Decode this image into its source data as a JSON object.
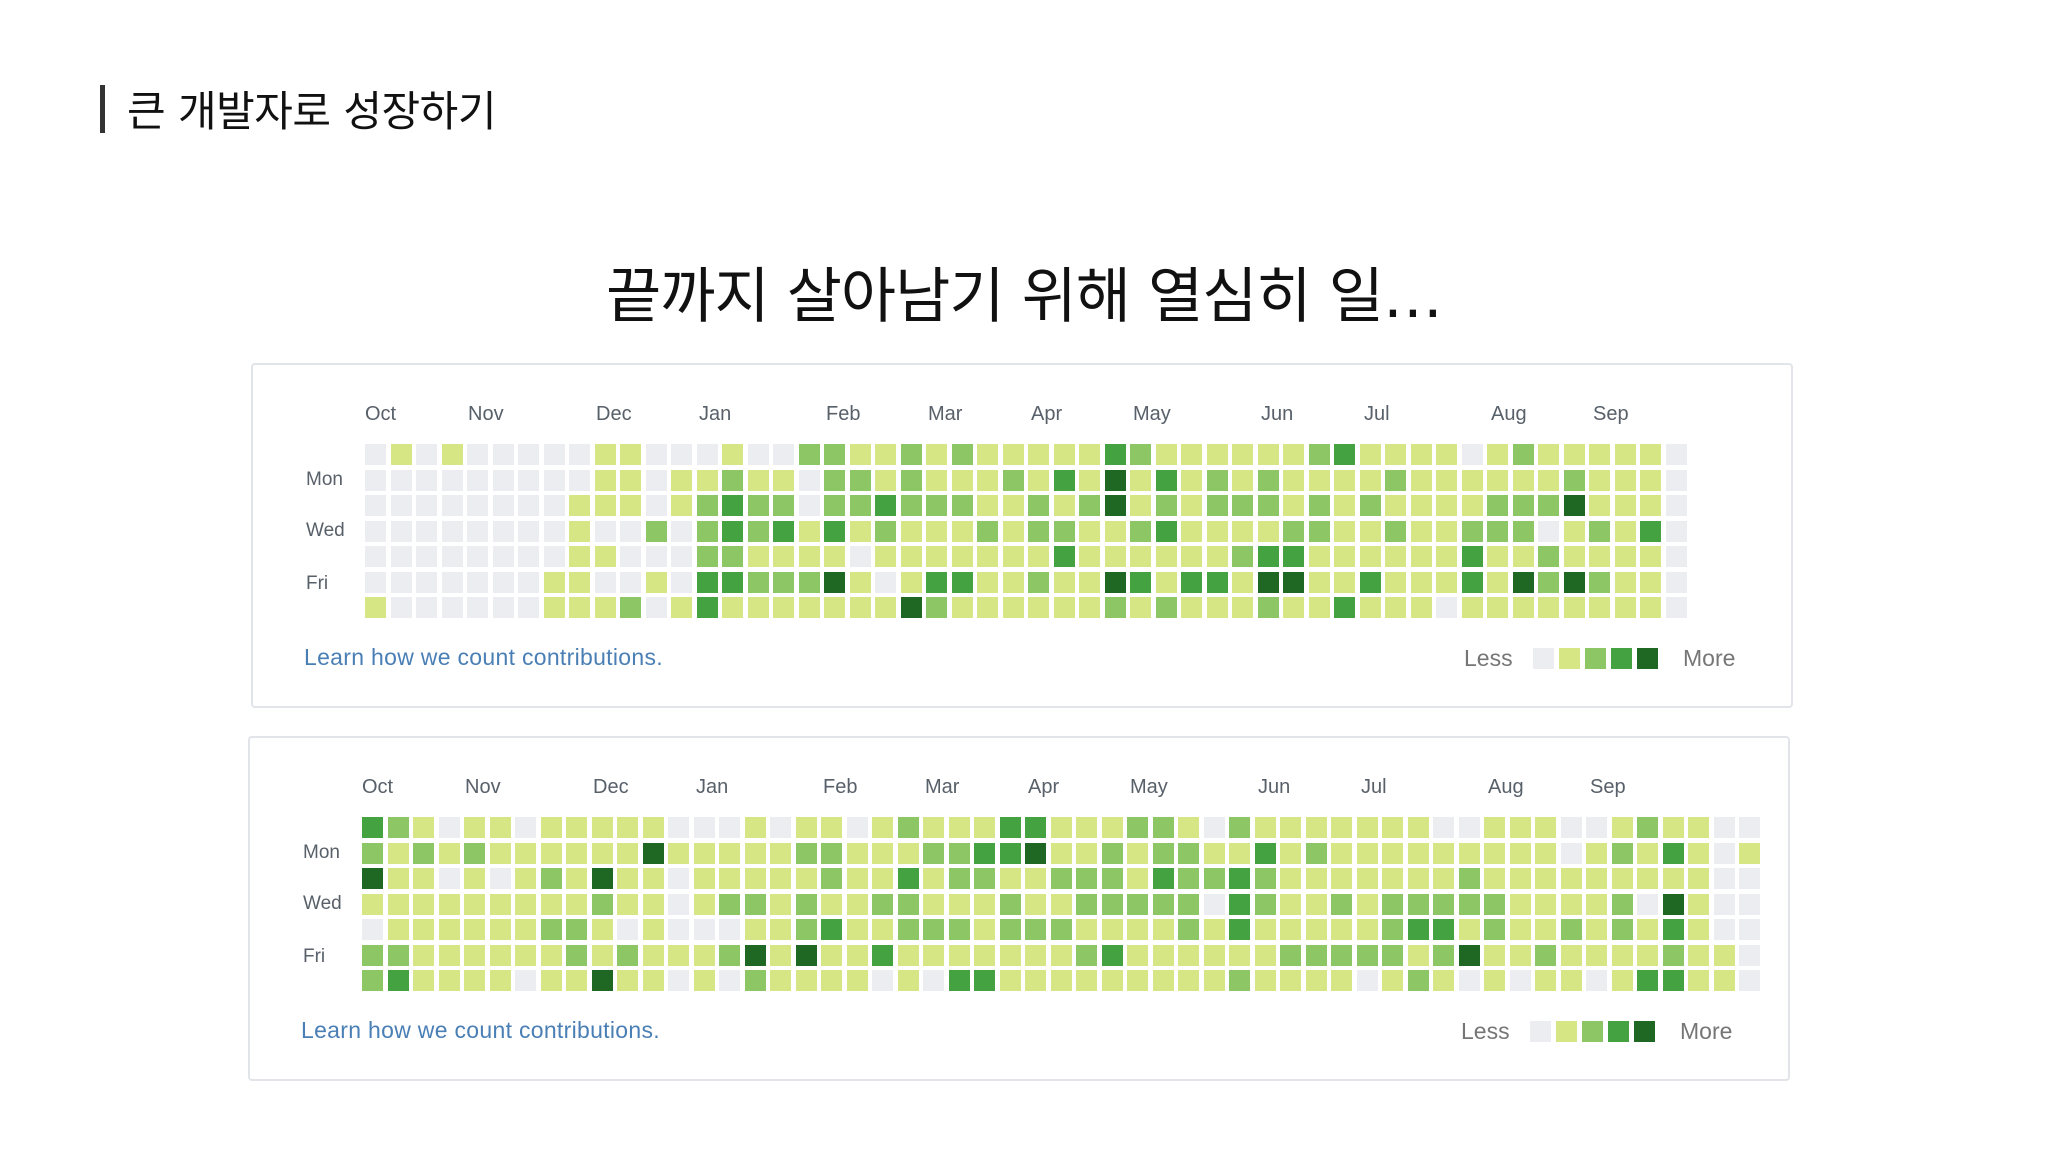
{
  "section_title": "큰 개발자로 성장하기",
  "headline": "끝까지 살아남기 위해 열심히 일…",
  "colors": [
    "#ebedf0",
    "#d6e685",
    "#8cc665",
    "#44a340",
    "#1e6823"
  ],
  "panels": [
    {
      "months": [
        "Oct",
        "Nov",
        "Dec",
        "Jan",
        "Feb",
        "Mar",
        "Apr",
        "May",
        "Jun",
        "Jul",
        "Aug",
        "Sep"
      ],
      "days": [
        "Mon",
        "Wed",
        "Fri"
      ],
      "learn_link": "Learn how we count contributions.",
      "legend_less": "Less",
      "legend_more": "More",
      "weeks": [
        [
          0,
          0,
          0,
          0,
          0,
          0,
          1
        ],
        [
          1,
          0,
          0,
          0,
          0,
          0,
          0
        ],
        [
          0,
          0,
          0,
          0,
          0,
          0,
          0
        ],
        [
          1,
          0,
          0,
          0,
          0,
          0,
          0
        ],
        [
          0,
          0,
          0,
          0,
          0,
          0,
          0
        ],
        [
          0,
          0,
          0,
          0,
          0,
          0,
          0
        ],
        [
          0,
          0,
          0,
          0,
          0,
          0,
          0
        ],
        [
          0,
          0,
          0,
          0,
          0,
          1,
          1
        ],
        [
          0,
          0,
          1,
          1,
          1,
          1,
          1
        ],
        [
          1,
          1,
          1,
          0,
          1,
          0,
          1
        ],
        [
          1,
          1,
          1,
          0,
          0,
          0,
          2
        ],
        [
          0,
          0,
          0,
          2,
          0,
          1,
          0
        ],
        [
          0,
          1,
          1,
          0,
          0,
          0,
          1
        ],
        [
          0,
          1,
          2,
          2,
          2,
          3,
          3
        ],
        [
          1,
          2,
          3,
          3,
          2,
          3,
          1
        ],
        [
          0,
          1,
          2,
          2,
          1,
          2,
          1
        ],
        [
          0,
          1,
          2,
          3,
          1,
          2,
          1
        ],
        [
          2,
          0,
          0,
          1,
          1,
          2,
          1
        ],
        [
          2,
          2,
          2,
          3,
          1,
          4,
          1
        ],
        [
          1,
          2,
          2,
          1,
          0,
          1,
          1
        ],
        [
          1,
          1,
          3,
          2,
          1,
          0,
          1
        ],
        [
          2,
          2,
          2,
          1,
          1,
          1,
          4
        ],
        [
          1,
          1,
          2,
          1,
          1,
          3,
          2
        ],
        [
          2,
          1,
          2,
          1,
          1,
          3,
          1
        ],
        [
          1,
          1,
          1,
          2,
          1,
          1,
          1
        ],
        [
          1,
          2,
          1,
          1,
          1,
          1,
          1
        ],
        [
          1,
          1,
          2,
          2,
          1,
          2,
          1
        ],
        [
          1,
          3,
          1,
          2,
          3,
          1,
          1
        ],
        [
          1,
          1,
          2,
          1,
          1,
          1,
          1
        ],
        [
          3,
          4,
          4,
          1,
          1,
          4,
          2
        ],
        [
          2,
          1,
          1,
          2,
          1,
          3,
          1
        ],
        [
          1,
          3,
          2,
          3,
          1,
          1,
          2
        ],
        [
          1,
          1,
          1,
          1,
          1,
          3,
          1
        ],
        [
          1,
          2,
          2,
          1,
          1,
          3,
          1
        ],
        [
          1,
          1,
          2,
          1,
          2,
          1,
          1
        ],
        [
          1,
          2,
          2,
          1,
          3,
          4,
          2
        ],
        [
          1,
          1,
          1,
          2,
          3,
          4,
          1
        ],
        [
          2,
          1,
          2,
          2,
          1,
          1,
          1
        ],
        [
          3,
          1,
          1,
          1,
          1,
          1,
          3
        ],
        [
          1,
          1,
          2,
          1,
          1,
          3,
          1
        ],
        [
          1,
          2,
          1,
          2,
          1,
          1,
          1
        ],
        [
          1,
          1,
          1,
          1,
          1,
          1,
          1
        ],
        [
          1,
          1,
          1,
          1,
          1,
          1,
          0
        ],
        [
          0,
          1,
          1,
          2,
          3,
          3,
          1
        ],
        [
          1,
          1,
          2,
          2,
          1,
          1,
          1
        ],
        [
          2,
          1,
          2,
          2,
          1,
          4,
          1
        ],
        [
          1,
          1,
          2,
          0,
          2,
          2,
          1
        ],
        [
          1,
          2,
          4,
          1,
          1,
          4,
          1
        ],
        [
          1,
          1,
          1,
          2,
          1,
          2,
          1
        ],
        [
          1,
          1,
          1,
          1,
          1,
          1,
          1
        ],
        [
          1,
          1,
          1,
          3,
          1,
          1,
          1
        ],
        [
          0,
          0,
          0,
          0,
          0,
          0,
          0
        ]
      ]
    },
    {
      "months": [
        "Oct",
        "Nov",
        "Dec",
        "Jan",
        "Feb",
        "Mar",
        "Apr",
        "May",
        "Jun",
        "Jul",
        "Aug",
        "Sep"
      ],
      "days": [
        "Mon",
        "Wed",
        "Fri"
      ],
      "learn_link": "Learn how we count contributions.",
      "legend_less": "Less",
      "legend_more": "More",
      "weeks": [
        [
          3,
          2,
          4,
          1,
          0,
          2,
          2
        ],
        [
          2,
          1,
          1,
          1,
          1,
          2,
          3
        ],
        [
          1,
          2,
          1,
          1,
          1,
          1,
          1
        ],
        [
          0,
          1,
          0,
          1,
          1,
          1,
          1
        ],
        [
          1,
          2,
          1,
          1,
          1,
          1,
          1
        ],
        [
          1,
          1,
          0,
          1,
          1,
          1,
          1
        ],
        [
          0,
          1,
          1,
          1,
          1,
          1,
          0
        ],
        [
          1,
          1,
          2,
          1,
          2,
          1,
          1
        ],
        [
          1,
          1,
          1,
          1,
          2,
          2,
          1
        ],
        [
          1,
          1,
          4,
          2,
          1,
          1,
          4
        ],
        [
          1,
          1,
          1,
          1,
          0,
          2,
          1
        ],
        [
          1,
          4,
          1,
          1,
          1,
          1,
          1
        ],
        [
          0,
          1,
          0,
          0,
          0,
          1,
          0
        ],
        [
          0,
          1,
          1,
          1,
          0,
          1,
          1
        ],
        [
          0,
          1,
          1,
          2,
          0,
          2,
          0
        ],
        [
          1,
          1,
          1,
          2,
          1,
          4,
          2
        ],
        [
          0,
          1,
          1,
          1,
          1,
          1,
          1
        ],
        [
          1,
          2,
          1,
          2,
          2,
          4,
          1
        ],
        [
          1,
          2,
          2,
          1,
          3,
          1,
          1
        ],
        [
          0,
          1,
          1,
          1,
          1,
          1,
          1
        ],
        [
          1,
          1,
          1,
          2,
          1,
          3,
          0
        ],
        [
          2,
          1,
          3,
          2,
          2,
          1,
          1
        ],
        [
          1,
          2,
          1,
          1,
          2,
          1,
          0
        ],
        [
          1,
          2,
          2,
          1,
          2,
          1,
          3
        ],
        [
          1,
          3,
          2,
          1,
          1,
          1,
          3
        ],
        [
          3,
          3,
          1,
          2,
          2,
          1,
          1
        ],
        [
          3,
          4,
          1,
          1,
          2,
          1,
          1
        ],
        [
          1,
          1,
          2,
          1,
          2,
          1,
          1
        ],
        [
          1,
          1,
          2,
          2,
          1,
          2,
          1
        ],
        [
          1,
          2,
          2,
          2,
          1,
          3,
          1
        ],
        [
          2,
          1,
          1,
          2,
          1,
          1,
          1
        ],
        [
          2,
          2,
          3,
          2,
          1,
          1,
          1
        ],
        [
          1,
          2,
          2,
          2,
          2,
          1,
          1
        ],
        [
          0,
          1,
          2,
          0,
          1,
          1,
          1
        ],
        [
          2,
          1,
          3,
          3,
          3,
          1,
          2
        ],
        [
          1,
          3,
          2,
          2,
          1,
          1,
          1
        ],
        [
          1,
          1,
          1,
          1,
          1,
          2,
          1
        ],
        [
          1,
          2,
          1,
          1,
          1,
          2,
          1
        ],
        [
          1,
          1,
          1,
          2,
          1,
          2,
          1
        ],
        [
          1,
          1,
          1,
          1,
          1,
          2,
          0
        ],
        [
          1,
          1,
          1,
          2,
          2,
          2,
          1
        ],
        [
          1,
          1,
          1,
          2,
          3,
          1,
          2
        ],
        [
          0,
          1,
          1,
          2,
          3,
          2,
          1
        ],
        [
          0,
          1,
          2,
          2,
          1,
          4,
          0
        ],
        [
          1,
          1,
          1,
          2,
          2,
          1,
          1
        ],
        [
          1,
          1,
          1,
          1,
          1,
          1,
          0
        ],
        [
          1,
          1,
          1,
          1,
          1,
          2,
          1
        ],
        [
          0,
          0,
          1,
          1,
          2,
          1,
          1
        ],
        [
          0,
          1,
          1,
          1,
          1,
          1,
          0
        ],
        [
          1,
          2,
          1,
          2,
          2,
          1,
          1
        ],
        [
          2,
          1,
          1,
          0,
          1,
          1,
          3
        ],
        [
          1,
          3,
          1,
          4,
          3,
          2,
          3
        ],
        [
          1,
          1,
          1,
          1,
          1,
          1,
          1
        ],
        [
          0,
          0,
          0,
          0,
          0,
          1,
          1
        ],
        [
          0,
          1,
          0,
          0,
          0,
          0,
          0
        ]
      ]
    }
  ]
}
